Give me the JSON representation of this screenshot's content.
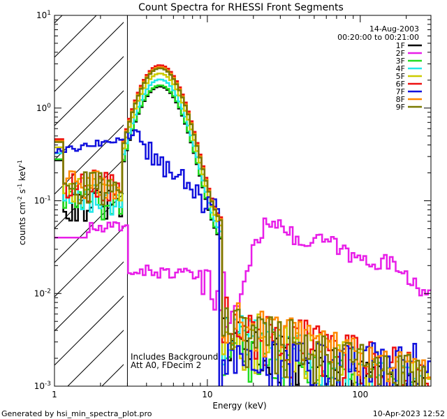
{
  "chart_data": {
    "type": "line",
    "title": "Count Spectra for RHESSI Front Segments",
    "xlabel": "Energy (keV)",
    "ylabel_parts": {
      "main": "counts cm",
      "exp1": "-2",
      "mid1": " s",
      "exp2": "-1",
      "mid2": " keV",
      "exp3": "-1"
    },
    "x_scale": "log",
    "y_scale": "log",
    "xlim": [
      1,
      290
    ],
    "ylim": [
      0.001,
      10
    ],
    "x_tick_labels": [
      {
        "value": 1,
        "label": "1"
      },
      {
        "value": 10,
        "label": "10"
      },
      {
        "value": 100,
        "label": "100"
      }
    ],
    "y_tick_labels": [
      {
        "value": 10,
        "base": "10",
        "exp": "1"
      },
      {
        "value": 1,
        "base": "10",
        "exp": "0"
      },
      {
        "value": 0.1,
        "base": "10",
        "exp": "-1"
      },
      {
        "value": 0.01,
        "base": "10",
        "exp": "-2"
      },
      {
        "value": 0.001,
        "base": "10",
        "exp": "-3"
      }
    ],
    "hatched_region_kev": [
      1,
      3
    ],
    "date": "14-Aug-2003",
    "time_range": "00:20:00 to 00:21:00",
    "annotations": [
      "Includes Background",
      "Att A0, FDecim 2"
    ],
    "legend_position": "top-right",
    "series": [
      {
        "name": "1F",
        "color": "#000000"
      },
      {
        "name": "2F",
        "color": "#e81ee8"
      },
      {
        "name": "3F",
        "color": "#22dd22"
      },
      {
        "name": "4F",
        "color": "#22e8e8"
      },
      {
        "name": "5F",
        "color": "#cccc00"
      },
      {
        "name": "6F",
        "color": "#ee1111"
      },
      {
        "name": "7F",
        "color": "#1111dd"
      },
      {
        "name": "8F",
        "color": "#ff8800"
      },
      {
        "name": "9F",
        "color": "#7a7a00"
      }
    ]
  },
  "footer": {
    "generated_by": "Generated by hsi_min_spectra_plot.pro",
    "timestamp": "10-Apr-2023 12:52"
  }
}
